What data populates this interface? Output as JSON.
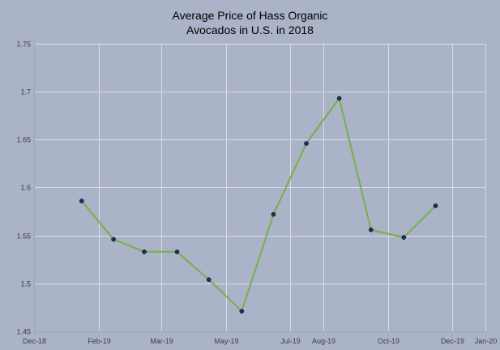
{
  "chart_data": {
    "type": "line",
    "title_lines": [
      "Average Price of Hass Organic",
      "Avocados in U.S. in 2018"
    ],
    "xlabel": "",
    "ylabel": "",
    "x_tick_labels": [
      "Dec-18",
      "Feb-19",
      "Mar-19",
      "May-19",
      "Jul-19",
      "Aug-19",
      "Oct-19",
      "Dec-19",
      "Jan-20"
    ],
    "x_tick_dates": [
      "2018-12-01",
      "2019-01-31",
      "2019-03-31",
      "2019-05-31",
      "2019-07-31",
      "2019-08-31",
      "2019-10-31",
      "2019-12-31",
      "2020-01-31"
    ],
    "xlim": [
      "2018-12-01",
      "2020-01-31"
    ],
    "ylim": [
      1.45,
      1.75
    ],
    "y_ticks": [
      1.45,
      1.5,
      1.55,
      1.6,
      1.65,
      1.7,
      1.75
    ],
    "y_tick_labels": [
      "1.45",
      "1.5",
      "1.55",
      "1.6",
      "1.65",
      "1.7",
      "1.75"
    ],
    "grid": true,
    "legend": "none",
    "series": [
      {
        "x": [
          "2019-01-15",
          "2019-02-14",
          "2019-03-15",
          "2019-04-15",
          "2019-05-15",
          "2019-06-15",
          "2019-07-15",
          "2019-08-15",
          "2019-09-15",
          "2019-10-15",
          "2019-11-15",
          "2019-12-15"
        ],
        "values": [
          1.586,
          1.546,
          1.533,
          1.533,
          1.504,
          1.471,
          1.572,
          1.646,
          1.693,
          1.556,
          1.548,
          1.581
        ],
        "line_color": "#77b046",
        "marker_color": "#1f2d5a"
      }
    ]
  },
  "colors": {
    "background": "#aab3c7",
    "gridline": "#d9dde6",
    "axis": "#a0a6b4",
    "title_text": "#000000",
    "tick_text": "#404040"
  }
}
